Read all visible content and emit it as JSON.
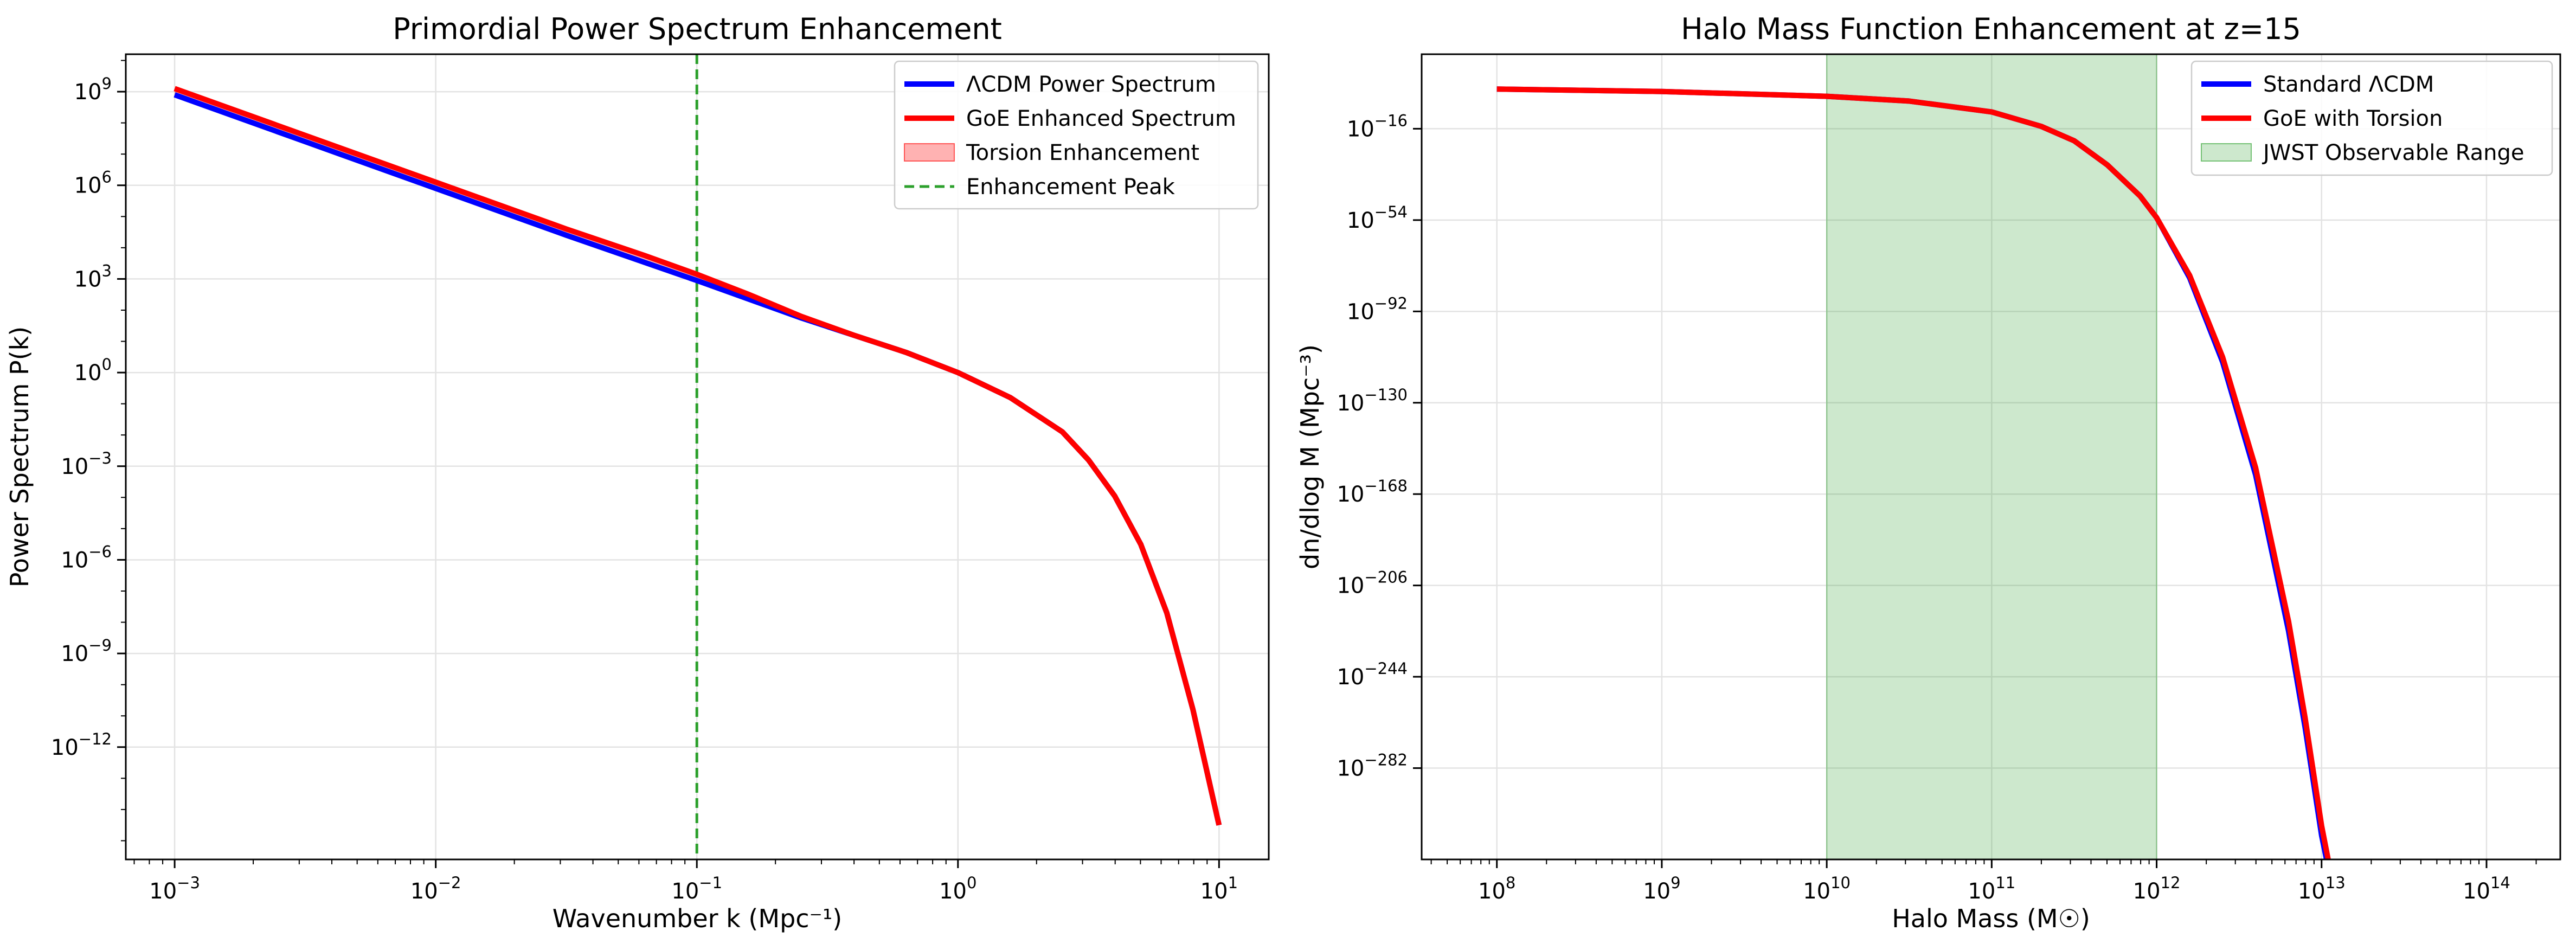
{
  "chart_data": [
    {
      "type": "line",
      "title": "Primordial Power Spectrum Enhancement",
      "xlabel": "Wavenumber k (Mpc⁻¹)",
      "ylabel": "Power Spectrum P(k)",
      "xscale": "log",
      "yscale": "log",
      "xlim": [
        0.00065,
        15.5
      ],
      "ylim_log10": [
        -15.6,
        10.2
      ],
      "x_ticks": [
        {
          "exp": -3,
          "label": "10",
          "sup": "−3"
        },
        {
          "exp": -2,
          "label": "10",
          "sup": "−2"
        },
        {
          "exp": -1,
          "label": "10",
          "sup": "−1"
        },
        {
          "exp": 0,
          "label": "10",
          "sup": "0"
        },
        {
          "exp": 1,
          "label": "10",
          "sup": "1"
        }
      ],
      "y_ticks": [
        {
          "exp": 9,
          "label": "10",
          "sup": "9"
        },
        {
          "exp": 6,
          "label": "10",
          "sup": "6"
        },
        {
          "exp": 3,
          "label": "10",
          "sup": "3"
        },
        {
          "exp": 0,
          "label": "10",
          "sup": "0"
        },
        {
          "exp": -3,
          "label": "10",
          "sup": "−3"
        },
        {
          "exp": -6,
          "label": "10",
          "sup": "−6"
        },
        {
          "exp": -9,
          "label": "10",
          "sup": "−9"
        },
        {
          "exp": -12,
          "label": "10",
          "sup": "−12"
        }
      ],
      "grid": true,
      "legend_position": "upper right",
      "series": [
        {
          "name": "ΛCDM Power Spectrum",
          "color": "#0000ff",
          "style": "solid",
          "points_log10": [
            [
              -3,
              8.9
            ],
            [
              -2.5,
              7.4
            ],
            [
              -2,
              5.9
            ],
            [
              -1.5,
              4.4
            ],
            [
              -1,
              2.95
            ],
            [
              -0.6,
              1.75
            ],
            [
              -0.2,
              0.65
            ],
            [
              0,
              0.0
            ],
            [
              0.2,
              -0.8
            ],
            [
              0.4,
              -1.9
            ],
            [
              0.5,
              -2.8
            ],
            [
              0.6,
              -3.95
            ],
            [
              0.7,
              -5.5
            ],
            [
              0.8,
              -7.7
            ],
            [
              0.9,
              -10.8
            ],
            [
              1,
              -14.5
            ]
          ]
        },
        {
          "name": "GoE Enhanced Spectrum",
          "color": "#ff0000",
          "style": "solid",
          "points_log10": [
            [
              -3,
              9.1
            ],
            [
              -2.5,
              7.6
            ],
            [
              -2,
              6.1
            ],
            [
              -1.5,
              4.6
            ],
            [
              -1.2,
              3.75
            ],
            [
              -1,
              3.15
            ],
            [
              -0.8,
              2.5
            ],
            [
              -0.6,
              1.8
            ],
            [
              -0.4,
              1.2
            ],
            [
              -0.2,
              0.65
            ],
            [
              0,
              0.0
            ],
            [
              0.2,
              -0.8
            ],
            [
              0.4,
              -1.9
            ],
            [
              0.5,
              -2.8
            ],
            [
              0.6,
              -3.95
            ],
            [
              0.7,
              -5.5
            ],
            [
              0.8,
              -7.7
            ],
            [
              0.9,
              -10.8
            ],
            [
              1,
              -14.5
            ]
          ]
        },
        {
          "name": "Torsion Enhancement",
          "color": "#ff0000",
          "style": "fill_between",
          "opacity": 0.3
        },
        {
          "name": "Enhancement Peak",
          "color": "#2ca02c",
          "style": "dashed",
          "x": 0.1
        }
      ]
    },
    {
      "type": "line",
      "title": "Halo Mass Function Enhancement at z=15",
      "xlabel": "Halo Mass (M☉)",
      "ylabel": "dn/dlog M (Mpc⁻³)",
      "xscale": "log",
      "yscale": "log",
      "xlim": [
        35000000.0,
        280000000000000.0
      ],
      "ylim_log10": [
        -320,
        15
      ],
      "x_ticks": [
        {
          "exp": 8,
          "label": "10",
          "sup": "8"
        },
        {
          "exp": 9,
          "label": "10",
          "sup": "9"
        },
        {
          "exp": 10,
          "label": "10",
          "sup": "10"
        },
        {
          "exp": 11,
          "label": "10",
          "sup": "11"
        },
        {
          "exp": 12,
          "label": "10",
          "sup": "12"
        },
        {
          "exp": 13,
          "label": "10",
          "sup": "13"
        },
        {
          "exp": 14,
          "label": "10",
          "sup": "14"
        }
      ],
      "y_ticks": [
        {
          "exp": -16,
          "label": "10",
          "sup": "−16"
        },
        {
          "exp": -54,
          "label": "10",
          "sup": "−54"
        },
        {
          "exp": -92,
          "label": "10",
          "sup": "−92"
        },
        {
          "exp": -130,
          "label": "10",
          "sup": "−130"
        },
        {
          "exp": -168,
          "label": "10",
          "sup": "−168"
        },
        {
          "exp": -206,
          "label": "10",
          "sup": "−206"
        },
        {
          "exp": -244,
          "label": "10",
          "sup": "−244"
        },
        {
          "exp": -282,
          "label": "10",
          "sup": "−282"
        }
      ],
      "grid": true,
      "legend_position": "upper right",
      "series": [
        {
          "name": "Standard ΛCDM",
          "color": "#0000ff",
          "style": "solid",
          "points_log10": [
            [
              8,
              0.5
            ],
            [
              9,
              -0.5
            ],
            [
              10,
              -2.5
            ],
            [
              10.5,
              -4.5
            ],
            [
              11,
              -9
            ],
            [
              11.3,
              -15
            ],
            [
              11.5,
              -21
            ],
            [
              11.7,
              -31
            ],
            [
              11.9,
              -44
            ],
            [
              12,
              -53
            ],
            [
              12.2,
              -78
            ],
            [
              12.4,
              -113
            ],
            [
              12.6,
              -160
            ],
            [
              12.8,
              -225
            ],
            [
              12.9,
              -265
            ],
            [
              13.0,
              -310
            ],
            [
              13.03,
              -320
            ]
          ]
        },
        {
          "name": "GoE with Torsion",
          "color": "#ff0000",
          "style": "solid",
          "points_log10": [
            [
              8,
              0.5
            ],
            [
              9,
              -0.5
            ],
            [
              10,
              -2.5
            ],
            [
              10.5,
              -4.5
            ],
            [
              11,
              -9
            ],
            [
              11.3,
              -15
            ],
            [
              11.5,
              -21
            ],
            [
              11.7,
              -31
            ],
            [
              11.9,
              -44
            ],
            [
              12,
              -53
            ],
            [
              12.2,
              -77
            ],
            [
              12.4,
              -111
            ],
            [
              12.6,
              -157
            ],
            [
              12.8,
              -221
            ],
            [
              12.9,
              -261
            ],
            [
              13.0,
              -306
            ],
            [
              13.04,
              -320
            ]
          ]
        },
        {
          "name": "JWST Observable Range",
          "color": "#2ca02c",
          "style": "span",
          "opacity": 0.24,
          "range": [
            10000000000.0,
            1000000000000.0
          ]
        }
      ]
    }
  ]
}
